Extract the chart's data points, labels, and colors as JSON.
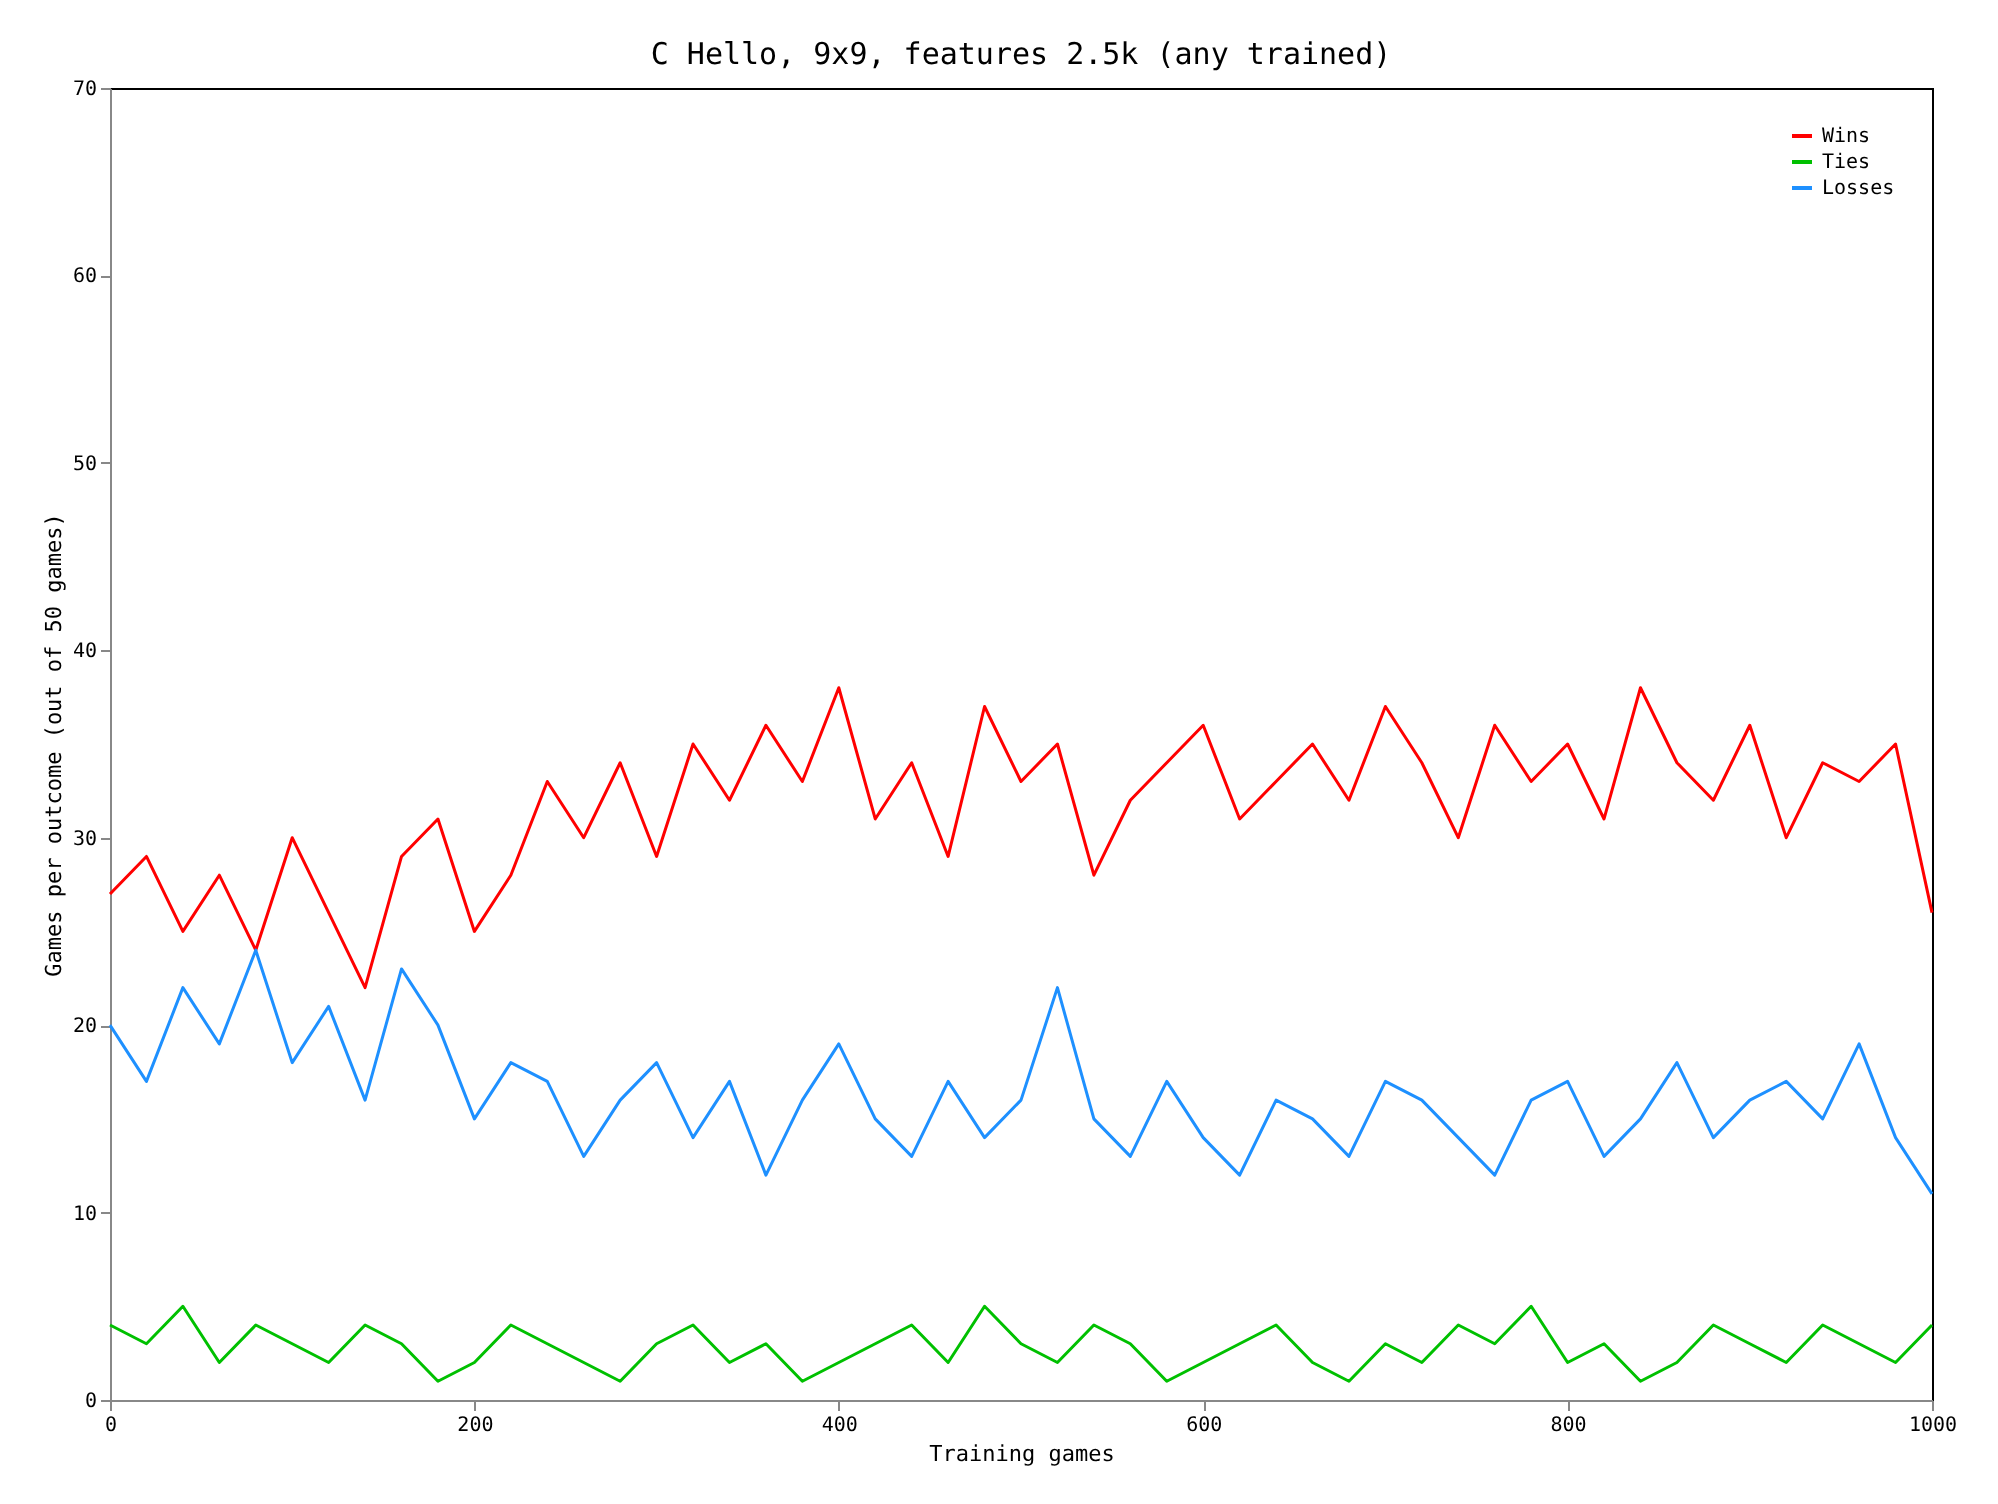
{
  "chart_data": {
    "type": "line",
    "title": "C Hello, 9x9, features 2.5k (any trained)",
    "xlabel": "Training games",
    "ylabel": "Games per outcome (out of 50 games)",
    "x": [
      0,
      20,
      40,
      60,
      80,
      100,
      120,
      140,
      160,
      180,
      200,
      220,
      240,
      260,
      280,
      300,
      320,
      340,
      360,
      380,
      400,
      420,
      440,
      460,
      480,
      500,
      520,
      540,
      560,
      580,
      600,
      620,
      640,
      660,
      680,
      700,
      720,
      740,
      760,
      780,
      800,
      820,
      840,
      860,
      880,
      900,
      920,
      940,
      960,
      980,
      1000
    ],
    "series": [
      {
        "name": "Wins",
        "color": "#ff0000",
        "values": [
          27,
          29,
          25,
          28,
          24,
          30,
          26,
          22,
          29,
          31,
          25,
          28,
          33,
          30,
          34,
          29,
          35,
          32,
          36,
          33,
          38,
          31,
          34,
          29,
          37,
          33,
          35,
          28,
          32,
          34,
          36,
          31,
          33,
          35,
          32,
          37,
          34,
          30,
          36,
          33,
          35,
          31,
          38,
          34,
          32,
          36,
          30,
          34,
          33,
          35,
          26
        ]
      },
      {
        "name": "Ties",
        "color": "#00c000",
        "values": [
          4,
          3,
          5,
          2,
          4,
          3,
          2,
          4,
          3,
          1,
          2,
          4,
          3,
          2,
          1,
          3,
          4,
          2,
          3,
          1,
          2,
          3,
          4,
          2,
          5,
          3,
          2,
          4,
          3,
          1,
          2,
          3,
          4,
          2,
          1,
          3,
          2,
          4,
          3,
          5,
          2,
          3,
          1,
          2,
          4,
          3,
          2,
          4,
          3,
          2,
          4
        ]
      },
      {
        "name": "Losses",
        "color": "#1e90ff",
        "values": [
          20,
          17,
          22,
          19,
          24,
          18,
          21,
          16,
          23,
          20,
          15,
          18,
          17,
          13,
          16,
          18,
          14,
          17,
          12,
          16,
          19,
          15,
          13,
          17,
          14,
          16,
          22,
          15,
          13,
          17,
          14,
          12,
          16,
          15,
          13,
          17,
          16,
          14,
          12,
          16,
          17,
          13,
          15,
          18,
          14,
          16,
          17,
          15,
          19,
          14,
          11
        ]
      }
    ],
    "xlim": [
      0,
      1000
    ],
    "xticks": [
      0,
      200,
      400,
      600,
      800,
      1000
    ],
    "ylim": [
      0,
      70
    ],
    "yticks": [
      0,
      10,
      20,
      30,
      40,
      50,
      60,
      70
    ],
    "grid": false,
    "legend": "top right"
  }
}
